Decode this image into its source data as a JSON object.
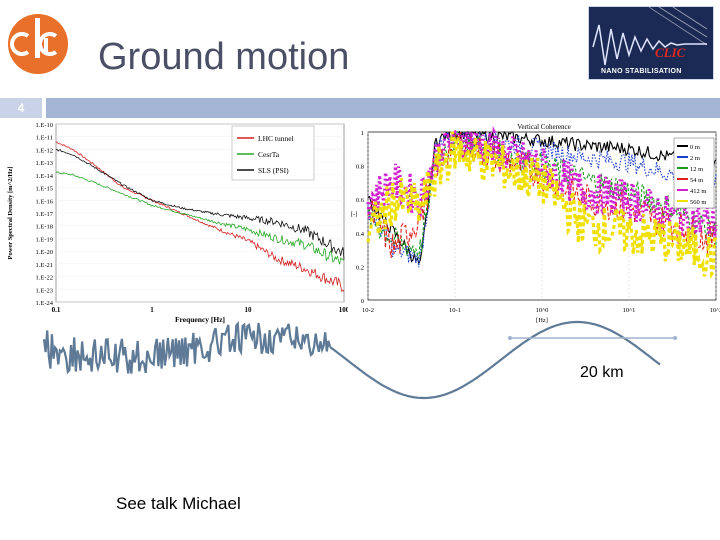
{
  "slide": {
    "title": "Ground motion",
    "number": "4",
    "distance_label": "20 km",
    "talk_note": "See talk Michael"
  },
  "logo": {
    "name": "clic-logo-icon",
    "color": "#e8702a"
  },
  "badge": {
    "clic": "CLIC",
    "text": "NANO STABILISATION"
  },
  "colors": {
    "title": "#4a4f66",
    "accent_bar": "#a5b5d6",
    "wave": "#5e7a96"
  },
  "chart_data": [
    {
      "type": "line",
      "title": "",
      "xlabel": "Frequency [Hz]",
      "ylabel": "Power Spectral Density [m^2/Hz]",
      "x_scale": "log",
      "xlim": [
        0.1,
        100
      ],
      "x_ticks": [
        "0.1",
        "1",
        "10",
        "100"
      ],
      "y_ticks": [
        "1.E-10",
        "1.E-11",
        "1.E-12",
        "1.E-13",
        "1.E-14",
        "1.E-15",
        "1.E-16",
        "1.E-17",
        "1.E-18",
        "1.E-19",
        "1.E-20",
        "1.E-21",
        "1.E-22",
        "1.E-23",
        "1.E-24"
      ],
      "legend_position": "top-right",
      "series": [
        {
          "name": "LHC tunnel",
          "color": "#d42020",
          "points": [
            [
              0.1,
              -11.4
            ],
            [
              0.15,
              -12.0
            ],
            [
              0.25,
              -13.2
            ],
            [
              0.5,
              -15.0
            ],
            [
              1,
              -16.0
            ],
            [
              2,
              -17.0
            ],
            [
              4,
              -18.0
            ],
            [
              10,
              -19.2
            ],
            [
              20,
              -20.6
            ],
            [
              40,
              -21.4
            ],
            [
              100,
              -22.8
            ]
          ]
        },
        {
          "name": "CesrTa",
          "color": "#2aa82a",
          "points": [
            [
              0.1,
              -13.8
            ],
            [
              0.15,
              -14.0
            ],
            [
              0.25,
              -14.6
            ],
            [
              0.5,
              -15.5
            ],
            [
              1,
              -16.4
            ],
            [
              2,
              -17.0
            ],
            [
              4,
              -17.6
            ],
            [
              10,
              -18.3
            ],
            [
              20,
              -19.0
            ],
            [
              40,
              -19.5
            ],
            [
              100,
              -21.0
            ]
          ]
        },
        {
          "name": "SLS (PSI)",
          "color": "#111111",
          "points": [
            [
              0.1,
              -12.0
            ],
            [
              0.15,
              -12.4
            ],
            [
              0.25,
              -13.4
            ],
            [
              0.5,
              -14.8
            ],
            [
              1,
              -16.0
            ],
            [
              2,
              -16.6
            ],
            [
              4,
              -17.0
            ],
            [
              10,
              -17.4
            ],
            [
              20,
              -17.7
            ],
            [
              40,
              -18.4
            ],
            [
              100,
              -20.2
            ]
          ]
        }
      ]
    },
    {
      "type": "line",
      "title": "Vertical Coherence",
      "xlabel": "[Hz]",
      "ylabel": "[-]",
      "x_scale": "log",
      "xlim": [
        0.01,
        100
      ],
      "ylim": [
        0,
        1
      ],
      "x_ticks": [
        "10-2",
        "10-1",
        "10^0",
        "10^1",
        "10^2"
      ],
      "y_ticks": [
        "0",
        "0.2",
        "0.4",
        "0.6",
        "0.8",
        "1"
      ],
      "legend_position": "top-right",
      "series": [
        {
          "name": "0 m",
          "color": "#000000",
          "points": [
            [
              0.01,
              0.6
            ],
            [
              0.02,
              0.4
            ],
            [
              0.04,
              0.2
            ],
            [
              0.06,
              0.95
            ],
            [
              0.1,
              1.0
            ],
            [
              1,
              0.95
            ],
            [
              3,
              0.92
            ],
            [
              10,
              0.9
            ],
            [
              30,
              0.85
            ],
            [
              100,
              0.8
            ]
          ]
        },
        {
          "name": "2 m",
          "color": "#1e3fd0",
          "points": [
            [
              0.01,
              0.55
            ],
            [
              0.02,
              0.3
            ],
            [
              0.04,
              0.25
            ],
            [
              0.06,
              0.9
            ],
            [
              0.1,
              0.97
            ],
            [
              1,
              0.9
            ],
            [
              3,
              0.85
            ],
            [
              10,
              0.82
            ],
            [
              30,
              0.75
            ],
            [
              100,
              0.7
            ]
          ]
        },
        {
          "name": "12 m",
          "color": "#1e9a1e",
          "points": [
            [
              0.01,
              0.5
            ],
            [
              0.02,
              0.35
            ],
            [
              0.04,
              0.3
            ],
            [
              0.06,
              0.85
            ],
            [
              0.1,
              0.95
            ],
            [
              1,
              0.8
            ],
            [
              3,
              0.72
            ],
            [
              10,
              0.65
            ],
            [
              30,
              0.55
            ],
            [
              100,
              0.4
            ]
          ]
        },
        {
          "name": "54 m",
          "color": "#e02020",
          "points": [
            [
              0.01,
              0.55
            ],
            [
              0.02,
              0.3
            ],
            [
              0.04,
              0.5
            ],
            [
              0.06,
              0.8
            ],
            [
              0.1,
              0.95
            ],
            [
              1,
              0.75
            ],
            [
              3,
              0.6
            ],
            [
              10,
              0.55
            ],
            [
              30,
              0.45
            ],
            [
              100,
              0.35
            ]
          ]
        },
        {
          "name": "412 m",
          "color": "#d020d0",
          "points": [
            [
              0.01,
              0.6
            ],
            [
              0.02,
              0.7
            ],
            [
              0.04,
              0.6
            ],
            [
              0.06,
              0.85
            ],
            [
              0.1,
              0.98
            ],
            [
              1,
              0.8
            ],
            [
              3,
              0.65
            ],
            [
              10,
              0.6
            ],
            [
              30,
              0.5
            ],
            [
              100,
              0.45
            ]
          ]
        },
        {
          "name": "560 m",
          "color": "#f0e000",
          "points": [
            [
              0.01,
              0.4
            ],
            [
              0.02,
              0.6
            ],
            [
              0.04,
              0.55
            ],
            [
              0.06,
              0.75
            ],
            [
              0.1,
              0.9
            ],
            [
              1,
              0.7
            ],
            [
              3,
              0.45
            ],
            [
              10,
              0.4
            ],
            [
              30,
              0.35
            ],
            [
              100,
              0.25
            ]
          ]
        }
      ]
    }
  ]
}
